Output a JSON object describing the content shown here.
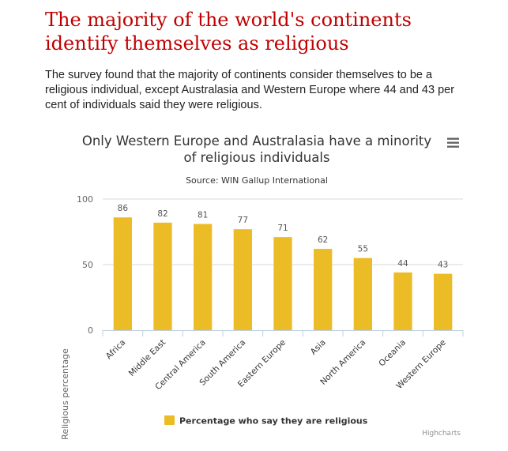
{
  "article": {
    "headline": "The majority of the world's continents identify themselves as religious",
    "intro": "The survey found that the majority of continents consider themselves to be a religious individual, except Australasia and Western Europe where 44 and 43 per cent of individuals said they were religious."
  },
  "chart_data": {
    "type": "bar",
    "title": "Only Western Europe and Australasia have a minority of religious individuals",
    "title_lines": [
      "Only Western Europe and Australasia have a minority",
      "of religious individuals"
    ],
    "subtitle": "Source: WIN Gallup International",
    "xlabel": "",
    "ylabel": "Religious percentage",
    "ylim": [
      0,
      100
    ],
    "yticks": [
      0,
      50,
      100
    ],
    "categories": [
      "Africa",
      "Middle East",
      "Central America",
      "South America",
      "Eastern Europe",
      "Asia",
      "North America",
      "Oceania",
      "Western Europe"
    ],
    "series": [
      {
        "name": "Percentage who say they are religious",
        "values": [
          86,
          82,
          81,
          77,
          71,
          62,
          55,
          44,
          43
        ],
        "color": "#ecbc27"
      }
    ],
    "data_labels": true,
    "grid": true,
    "legend": "bottom-center",
    "credits": "Highcharts",
    "menu_icon": "hamburger-menu-icon"
  }
}
